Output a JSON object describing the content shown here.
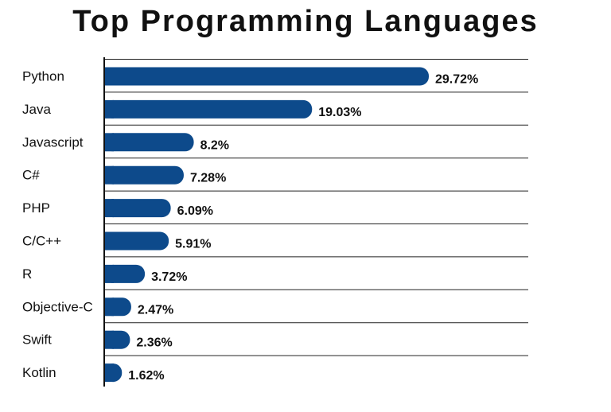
{
  "chart_data": {
    "type": "bar",
    "orientation": "horizontal",
    "title": "Top Programming Languages",
    "xlabel": "",
    "ylabel": "",
    "categories": [
      "Python",
      "Java",
      "Javascript",
      "C#",
      "PHP",
      "C/C++",
      "R",
      "Objective-C",
      "Swift",
      "Kotlin"
    ],
    "values": [
      29.72,
      19.03,
      8.2,
      7.28,
      6.09,
      5.91,
      3.72,
      2.47,
      2.36,
      1.62
    ],
    "value_labels": [
      "29.72%",
      "19.03%",
      "8.2%",
      "7.28%",
      "6.09%",
      "5.91%",
      "3.72%",
      "2.47%",
      "2.36%",
      "1.62%"
    ],
    "bar_color": "#0d4a8b",
    "grid": true,
    "legend": "none"
  }
}
